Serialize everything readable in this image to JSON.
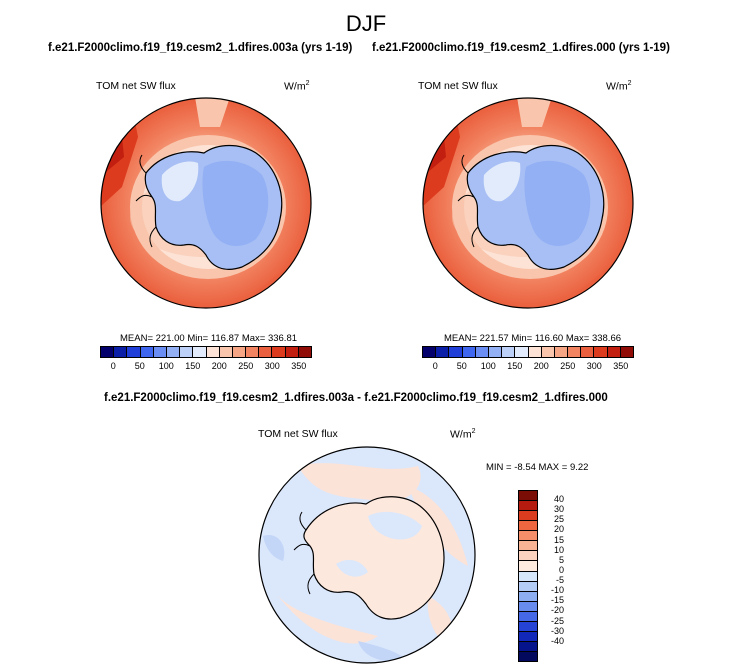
{
  "figure": {
    "title": "DJF"
  },
  "panels": [
    {
      "header": "f.e21.F2000climo.f19_f19.cesm2_1.dfires.003a (yrs 1-19)",
      "variable": "TOM net SW flux",
      "units": "W/m",
      "units_sup": "2",
      "stats": "MEAN= 221.00  Min= 116.87  Max= 336.81"
    },
    {
      "header": "f.e21.F2000climo.f19_f19.cesm2_1.dfires.000 (yrs 1-19)",
      "variable": "TOM net SW flux",
      "units": "W/m",
      "units_sup": "2",
      "stats": "MEAN= 221.57  Min= 116.60  Max= 338.66"
    }
  ],
  "diff_panel": {
    "header": "f.e21.F2000climo.f19_f19.cesm2_1.dfires.003a - f.e21.F2000climo.f19_f19.cesm2_1.dfires.000",
    "variable": "TOM net SW flux",
    "units": "W/m",
    "units_sup": "2",
    "stats": "MIN =  -8.54 MAX =   9.22"
  },
  "colorbar_abs": {
    "colors": [
      "#03006b",
      "#0b1ea8",
      "#1f3fd8",
      "#3f66ee",
      "#6a8ef4",
      "#93b0f5",
      "#bdd0f7",
      "#e2ebfb",
      "#fde3d6",
      "#f9c6ad",
      "#f6a585",
      "#f28462",
      "#ea5f3d",
      "#dc3b1e",
      "#c21f10",
      "#8f0d06"
    ],
    "ticks": [
      "0",
      "50",
      "100",
      "150",
      "200",
      "250",
      "300",
      "350"
    ]
  },
  "colorbar_diff": {
    "colors": [
      "#7a0d05",
      "#b51b0e",
      "#db3b1f",
      "#ee6640",
      "#f58e69",
      "#f8b394",
      "#fbd3bf",
      "#fdebe0",
      "#d6e6fb",
      "#b4cdf6",
      "#8eaef2",
      "#688cee",
      "#4468e6",
      "#2544d6",
      "#1228b8",
      "#06148c",
      "#030a5e"
    ],
    "ticks": [
      "40",
      "30",
      "25",
      "20",
      "15",
      "10",
      "5",
      "0",
      "-5",
      "-10",
      "-15",
      "-20",
      "-25",
      "-30",
      "-40"
    ]
  },
  "chart_data": {
    "type": "heatmap",
    "projection": "south polar stereographic",
    "season": "DJF",
    "panels": [
      {
        "case": "f.e21.F2000climo.f19_f19.cesm2_1.dfires.003a",
        "years": "1-19",
        "variable": "TOM net SW flux",
        "units": "W/m2",
        "mean": 221.0,
        "min": 116.87,
        "max": 336.81,
        "levels": [
          0,
          50,
          100,
          150,
          200,
          250,
          300,
          350
        ]
      },
      {
        "case": "f.e21.F2000climo.f19_f19.cesm2_1.dfires.000",
        "years": "1-19",
        "variable": "TOM net SW flux",
        "units": "W/m2",
        "mean": 221.57,
        "min": 116.6,
        "max": 338.66,
        "levels": [
          0,
          50,
          100,
          150,
          200,
          250,
          300,
          350
        ]
      },
      {
        "case": "difference",
        "variable": "TOM net SW flux",
        "units": "W/m2",
        "min": -8.54,
        "max": 9.22,
        "levels": [
          40,
          30,
          25,
          20,
          15,
          10,
          5,
          0,
          -5,
          -10,
          -15,
          -20,
          -25,
          -30,
          -40
        ]
      }
    ]
  }
}
